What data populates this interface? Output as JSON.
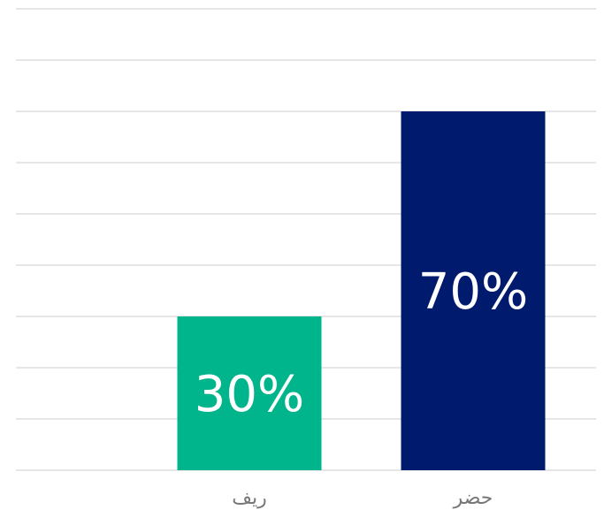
{
  "chart_data": {
    "type": "bar",
    "categories": [
      "ريف",
      "حضر"
    ],
    "values": [
      30,
      70
    ],
    "value_labels": [
      "30%",
      "70%"
    ],
    "colors": [
      "#00b48c",
      "#001a6e"
    ],
    "ylim": [
      0,
      90
    ],
    "grid": true,
    "legend": "none"
  }
}
